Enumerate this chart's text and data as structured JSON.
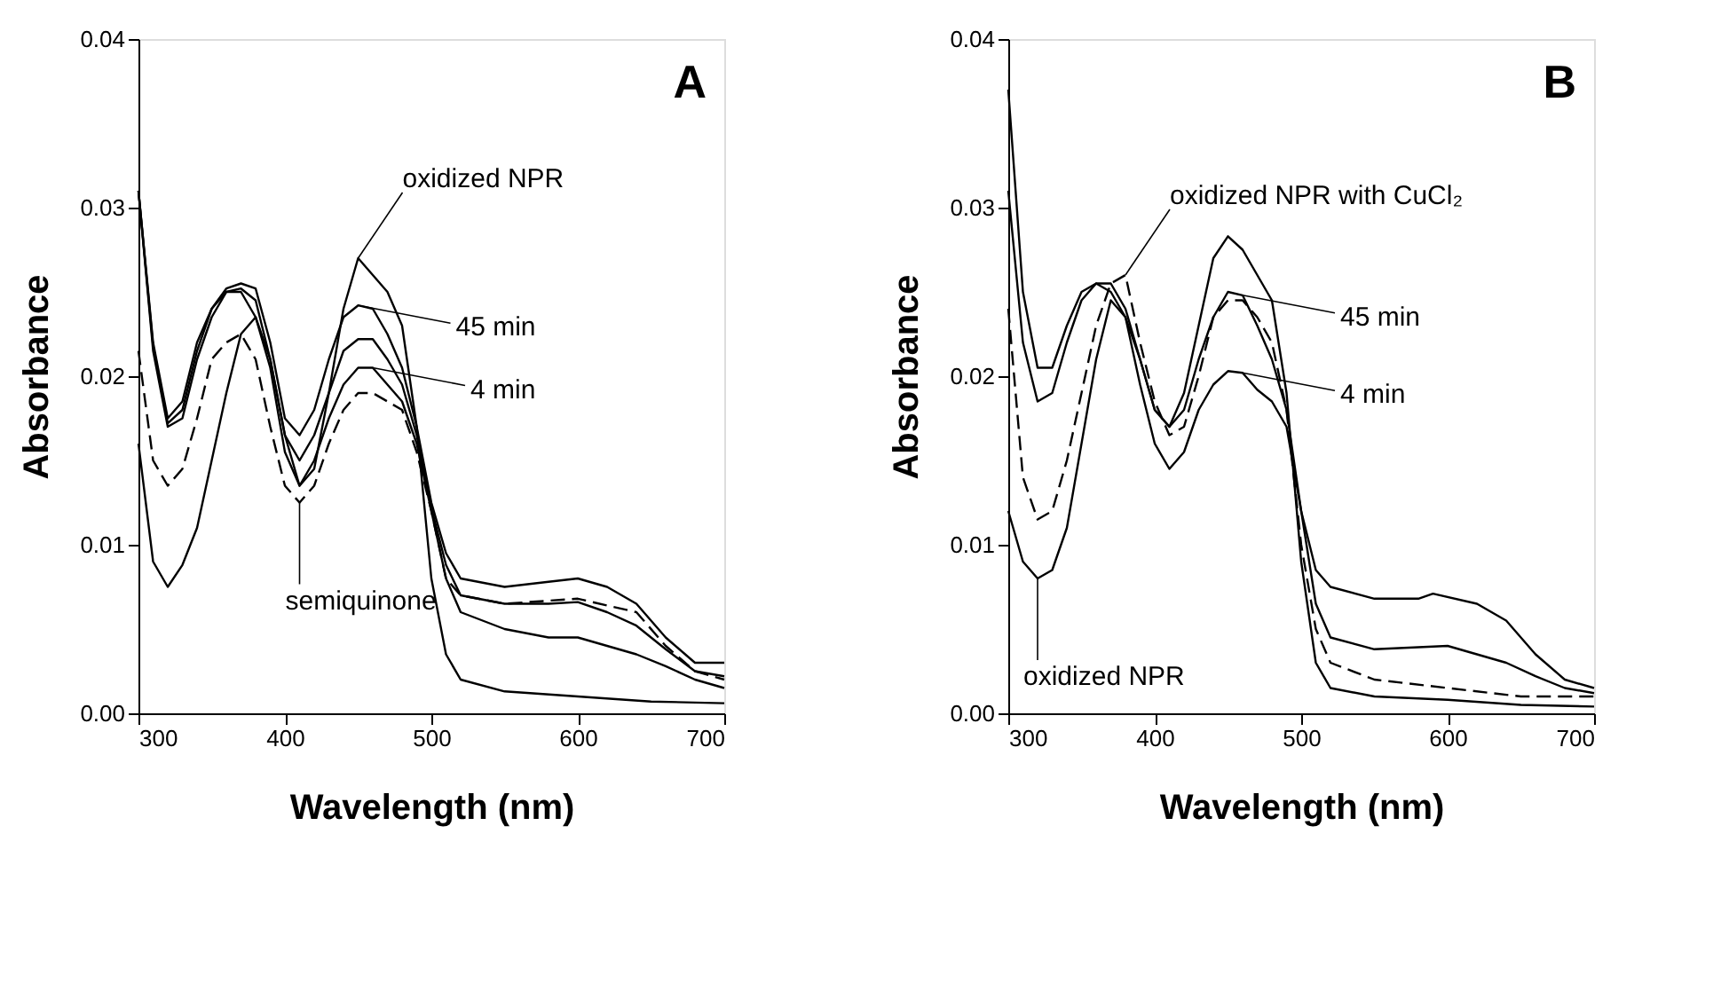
{
  "chart_data": [
    {
      "type": "line",
      "xlabel": "Wavelength (nm)",
      "ylabel": "Absorbance",
      "xlim": [
        300,
        700
      ],
      "xticks": [
        300,
        400,
        500,
        600,
        700
      ],
      "ylim": [
        0,
        0.04
      ],
      "yticks": [
        {
          "value": 0,
          "label": "0.00"
        },
        0.01,
        0.02,
        0.03,
        0.04
      ],
      "grid": false,
      "legend": false,
      "annotations": [
        "A",
        {
          "text": "oxidized NPR",
          "x": 450,
          "y": 0.027
        },
        {
          "text": "45 min",
          "x": 450,
          "y": 0.0242
        },
        {
          "text": "4 min",
          "x": 460,
          "y": 0.0205
        },
        {
          "text": "semiquinone",
          "x": 410,
          "y": 0.0125
        }
      ],
      "series": [
        {
          "color": "#000000",
          "line_style": "solid",
          "x": [
            300,
            310,
            320,
            330,
            340,
            350,
            360,
            370,
            380,
            390,
            400,
            410,
            420,
            430,
            440,
            450,
            460,
            470,
            480,
            490,
            500,
            510,
            520,
            550,
            600,
            650,
            700
          ],
          "values": [
            0.016,
            0.009,
            0.0075,
            0.0088,
            0.011,
            0.015,
            0.019,
            0.0225,
            0.0235,
            0.021,
            0.0165,
            0.0135,
            0.0145,
            0.019,
            0.024,
            0.027,
            0.026,
            0.025,
            0.023,
            0.017,
            0.008,
            0.0035,
            0.002,
            0.0013,
            0.001,
            0.0007,
            0.0006
          ]
        },
        {
          "color": "#000000",
          "line_style": "solid",
          "x": [
            300,
            310,
            320,
            330,
            340,
            350,
            360,
            370,
            380,
            390,
            400,
            410,
            420,
            430,
            440,
            450,
            460,
            470,
            480,
            490,
            500,
            510,
            520,
            550,
            580,
            600,
            620,
            640,
            660,
            680,
            700
          ],
          "values": [
            0.031,
            0.022,
            0.0175,
            0.0185,
            0.022,
            0.024,
            0.0252,
            0.0255,
            0.0252,
            0.022,
            0.0175,
            0.0165,
            0.018,
            0.021,
            0.0235,
            0.0242,
            0.024,
            0.0225,
            0.0205,
            0.017,
            0.0125,
            0.0095,
            0.008,
            0.0075,
            0.0078,
            0.008,
            0.0075,
            0.0065,
            0.0045,
            0.003,
            0.003
          ]
        },
        {
          "color": "#000000",
          "line_style": "solid",
          "x": [
            300,
            310,
            320,
            330,
            340,
            350,
            360,
            370,
            380,
            390,
            400,
            410,
            420,
            430,
            440,
            450,
            460,
            470,
            480,
            490,
            500,
            510,
            520,
            550,
            580,
            600,
            620,
            640,
            660,
            680,
            700
          ],
          "values": [
            0.031,
            0.0218,
            0.0172,
            0.018,
            0.0215,
            0.024,
            0.025,
            0.0252,
            0.0245,
            0.021,
            0.0165,
            0.015,
            0.0165,
            0.019,
            0.0215,
            0.0222,
            0.0222,
            0.021,
            0.0195,
            0.0165,
            0.0122,
            0.0088,
            0.007,
            0.0065,
            0.0065,
            0.0066,
            0.006,
            0.0052,
            0.0038,
            0.0025,
            0.0022
          ]
        },
        {
          "color": "#000000",
          "line_style": "solid",
          "x": [
            300,
            310,
            320,
            330,
            340,
            350,
            360,
            370,
            380,
            390,
            400,
            410,
            420,
            430,
            440,
            450,
            460,
            470,
            480,
            490,
            500,
            510,
            520,
            550,
            580,
            600,
            620,
            640,
            660,
            680,
            700
          ],
          "values": [
            0.031,
            0.0215,
            0.017,
            0.0175,
            0.021,
            0.0235,
            0.025,
            0.025,
            0.0235,
            0.0205,
            0.0155,
            0.0135,
            0.015,
            0.0175,
            0.0195,
            0.0205,
            0.0205,
            0.0195,
            0.0185,
            0.016,
            0.012,
            0.008,
            0.006,
            0.005,
            0.0045,
            0.0045,
            0.004,
            0.0035,
            0.0028,
            0.002,
            0.0015
          ]
        },
        {
          "color": "#000000",
          "line_style": "dashed",
          "x": [
            300,
            310,
            320,
            330,
            340,
            350,
            360,
            370,
            380,
            390,
            400,
            410,
            420,
            430,
            440,
            450,
            460,
            470,
            480,
            490,
            500,
            510,
            520,
            550,
            600,
            640,
            660,
            680,
            700
          ],
          "values": [
            0.0215,
            0.015,
            0.0135,
            0.0145,
            0.0175,
            0.021,
            0.022,
            0.0225,
            0.021,
            0.017,
            0.0135,
            0.0125,
            0.0135,
            0.016,
            0.018,
            0.019,
            0.019,
            0.0185,
            0.018,
            0.0155,
            0.012,
            0.008,
            0.007,
            0.0065,
            0.0068,
            0.006,
            0.004,
            0.0025,
            0.002
          ]
        }
      ]
    },
    {
      "type": "line",
      "xlabel": "Wavelength (nm)",
      "ylabel": "Absorbance",
      "xlim": [
        300,
        700
      ],
      "xticks": [
        300,
        400,
        500,
        600,
        700
      ],
      "ylim": [
        0,
        0.04
      ],
      "yticks": [
        {
          "value": 0,
          "label": "0.00"
        },
        0.01,
        0.02,
        0.03,
        0.04
      ],
      "grid": false,
      "legend": false,
      "annotations": [
        "B",
        {
          "text": "oxidized NPR with CuCl₂",
          "x": 380,
          "y": 0.026
        },
        {
          "text": "45 min",
          "x": 460,
          "y": 0.0248
        },
        {
          "text": "4 min",
          "x": 460,
          "y": 0.0202
        },
        {
          "text": "oxidized NPR",
          "x": 320,
          "y": 0.008
        }
      ],
      "series": [
        {
          "color": "#000000",
          "line_style": "solid",
          "x": [
            300,
            310,
            320,
            330,
            340,
            350,
            360,
            370,
            380,
            390,
            400,
            410,
            420,
            430,
            440,
            450,
            460,
            470,
            480,
            490,
            500,
            510,
            520,
            550,
            600,
            650,
            700
          ],
          "values": [
            0.012,
            0.009,
            0.008,
            0.0085,
            0.011,
            0.016,
            0.021,
            0.0245,
            0.0235,
            0.021,
            0.018,
            0.017,
            0.019,
            0.023,
            0.027,
            0.0283,
            0.0275,
            0.026,
            0.0245,
            0.019,
            0.009,
            0.003,
            0.0015,
            0.001,
            0.0008,
            0.0005,
            0.0004
          ]
        },
        {
          "color": "#000000",
          "line_style": "dashed",
          "x": [
            300,
            310,
            320,
            330,
            340,
            350,
            360,
            370,
            380,
            390,
            400,
            410,
            420,
            430,
            440,
            450,
            460,
            470,
            480,
            490,
            500,
            510,
            520,
            550,
            600,
            650,
            700
          ],
          "values": [
            0.024,
            0.014,
            0.0115,
            0.012,
            0.015,
            0.019,
            0.023,
            0.0255,
            0.026,
            0.022,
            0.0185,
            0.0165,
            0.017,
            0.02,
            0.0235,
            0.0245,
            0.0245,
            0.0235,
            0.022,
            0.018,
            0.01,
            0.005,
            0.003,
            0.002,
            0.0015,
            0.001,
            0.001
          ]
        },
        {
          "color": "#000000",
          "line_style": "solid",
          "x": [
            300,
            310,
            320,
            330,
            340,
            350,
            360,
            370,
            380,
            390,
            400,
            410,
            420,
            430,
            440,
            450,
            460,
            470,
            480,
            490,
            500,
            510,
            520,
            550,
            580,
            590,
            620,
            640,
            660,
            680,
            700
          ],
          "values": [
            0.037,
            0.025,
            0.0205,
            0.0205,
            0.023,
            0.025,
            0.0255,
            0.0255,
            0.024,
            0.021,
            0.018,
            0.017,
            0.018,
            0.021,
            0.0235,
            0.025,
            0.0248,
            0.023,
            0.021,
            0.018,
            0.012,
            0.0085,
            0.0075,
            0.0068,
            0.0068,
            0.0071,
            0.0065,
            0.0055,
            0.0035,
            0.002,
            0.0015
          ]
        },
        {
          "color": "#000000",
          "line_style": "solid",
          "x": [
            300,
            310,
            320,
            330,
            340,
            350,
            360,
            370,
            380,
            390,
            400,
            410,
            420,
            430,
            440,
            450,
            460,
            470,
            480,
            490,
            500,
            510,
            520,
            550,
            600,
            620,
            640,
            660,
            680,
            700
          ],
          "values": [
            0.031,
            0.022,
            0.0185,
            0.019,
            0.022,
            0.0245,
            0.0255,
            0.025,
            0.0235,
            0.0195,
            0.016,
            0.0145,
            0.0155,
            0.018,
            0.0195,
            0.0203,
            0.0202,
            0.0192,
            0.0185,
            0.017,
            0.012,
            0.0065,
            0.0045,
            0.0038,
            0.004,
            0.0035,
            0.003,
            0.0022,
            0.0015,
            0.0012
          ]
        }
      ]
    }
  ]
}
